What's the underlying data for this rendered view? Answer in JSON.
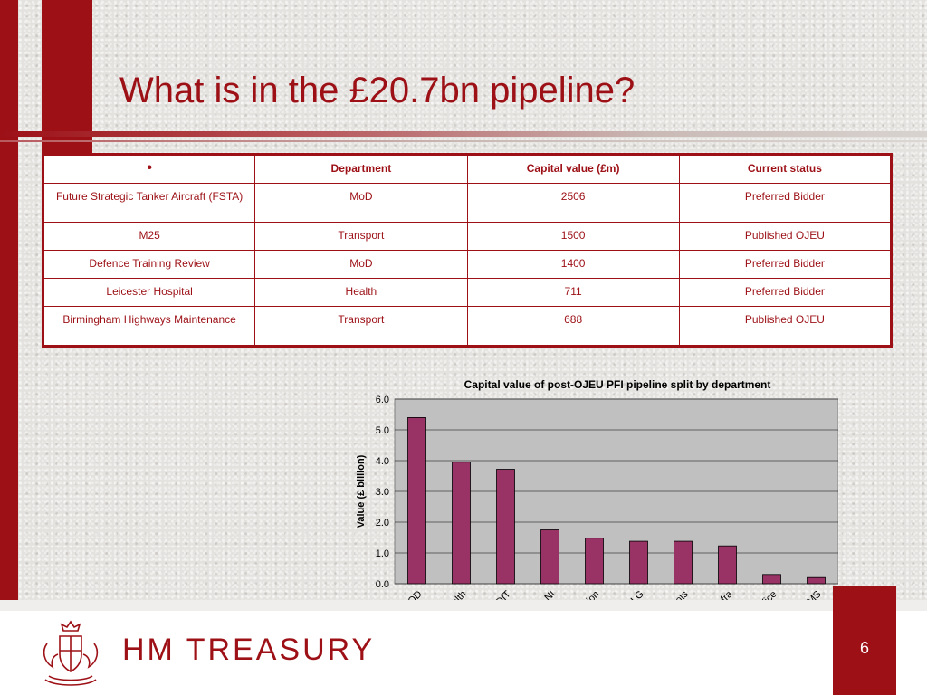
{
  "slide": {
    "title": "What is in the £20.7bn pipeline?",
    "page_number": "6",
    "brand": "HM TREASURY"
  },
  "table": {
    "bullet": "•",
    "headers": [
      "Department",
      "Capital value (£m)",
      "Current status"
    ],
    "rows": [
      [
        "Future Strategic Tanker Aircraft (FSTA)",
        "MoD",
        "2506",
        "Preferred Bidder"
      ],
      [
        "M25",
        "Transport",
        "1500",
        "Published OJEU"
      ],
      [
        "Defence Training Review",
        "MoD",
        "1400",
        "Preferred Bidder"
      ],
      [
        "Leicester Hospital",
        "Health",
        "711",
        "Preferred Bidder"
      ],
      [
        "Birmingham Highways Maintenance",
        "Transport",
        "688",
        "Published OJEU"
      ]
    ]
  },
  "colors": {
    "brand_red": "#9c1016",
    "bar_fill": "#993366",
    "plot_bg": "#c0c0c0"
  },
  "chart_data": {
    "type": "bar",
    "title": "Capital value of post-OJEU PFI pipeline split by department",
    "xlabel": "",
    "ylabel": "Value (£ billion)",
    "ylim": [
      0,
      6.0
    ],
    "yticks": [
      "0.0",
      "1.0",
      "2.0",
      "3.0",
      "4.0",
      "5.0",
      "6.0"
    ],
    "grid": true,
    "categories": [
      "MOD",
      "Health",
      "DfT",
      "NI",
      "Education",
      "DCLG",
      "Scots",
      "Defra",
      "Home Office",
      "DCMS"
    ],
    "values": [
      5.4,
      3.95,
      3.72,
      1.75,
      1.48,
      1.38,
      1.38,
      1.23,
      0.3,
      0.2
    ]
  }
}
